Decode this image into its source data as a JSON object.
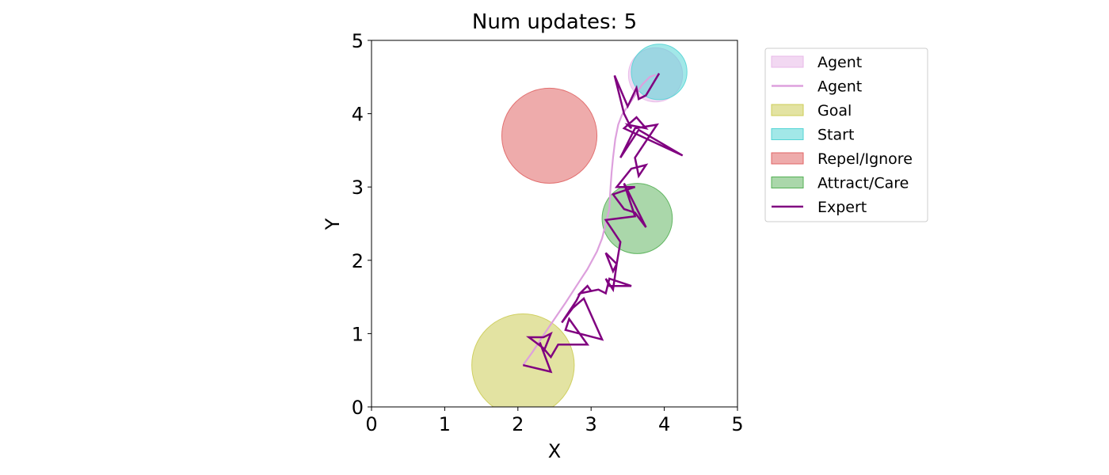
{
  "chart_data": {
    "type": "scatter",
    "title": "Num updates: 5",
    "xlabel": "X",
    "ylabel": "Y",
    "xlim": [
      0,
      5
    ],
    "ylim": [
      0,
      5
    ],
    "xticks": [
      "0",
      "1",
      "2",
      "3",
      "4",
      "5"
    ],
    "yticks": [
      "0",
      "1",
      "2",
      "3",
      "4",
      "5"
    ],
    "grid": false,
    "legend_position": "outside-right-top",
    "circles": [
      {
        "name": "Goal",
        "cx": 2.07,
        "cy": 0.57,
        "r": 0.7,
        "color": "#cccc55",
        "alpha": 0.55
      },
      {
        "name": "Repel/Ignore",
        "cx": 2.43,
        "cy": 3.7,
        "r": 0.65,
        "color": "#e06666",
        "alpha": 0.55
      },
      {
        "name": "Attract/Care",
        "cx": 3.63,
        "cy": 2.57,
        "r": 0.48,
        "color": "#55b055",
        "alpha": 0.5
      },
      {
        "name": "Agent",
        "cx": 3.88,
        "cy": 4.53,
        "r": 0.37,
        "color": "#e8b8e8",
        "alpha": 0.55
      },
      {
        "name": "Start",
        "cx": 3.93,
        "cy": 4.57,
        "r": 0.38,
        "color": "#55d5d5",
        "alpha": 0.55
      }
    ],
    "series": [
      {
        "name": "Agent",
        "color": "#dda0dd",
        "x": [
          2.07,
          2.2,
          2.35,
          2.5,
          2.65,
          2.8,
          2.95,
          3.08,
          3.15,
          3.2,
          3.25,
          3.26,
          3.27,
          3.28,
          3.3,
          3.33,
          3.37,
          3.42,
          3.5,
          3.6,
          3.7,
          3.8,
          3.88
        ],
        "y": [
          0.57,
          0.75,
          0.98,
          1.2,
          1.42,
          1.65,
          1.88,
          2.12,
          2.3,
          2.5,
          2.7,
          2.9,
          3.05,
          3.2,
          3.4,
          3.65,
          3.85,
          3.98,
          4.1,
          4.25,
          4.4,
          4.5,
          4.53
        ]
      },
      {
        "name": "Expert",
        "color": "#800080",
        "x": [
          3.93,
          3.75,
          3.65,
          3.62,
          3.5,
          3.32,
          3.45,
          3.55,
          3.5,
          3.75,
          3.62,
          3.45,
          4.25,
          3.65,
          3.4,
          3.6,
          3.9,
          3.6,
          3.65,
          3.75,
          3.55,
          3.35,
          3.6,
          3.3,
          3.45,
          3.6,
          3.75,
          3.45,
          3.6,
          3.2,
          3.4,
          3.35,
          3.3,
          3.2,
          3.35,
          3.3,
          3.2,
          3.25,
          3.55,
          3.25,
          3.2,
          3.1,
          2.85,
          2.95,
          3.0,
          2.85,
          2.8,
          2.6,
          2.75,
          2.9,
          3.15,
          2.65,
          2.7,
          2.95,
          2.55,
          2.55,
          2.45,
          2.35,
          2.15,
          2.35,
          2.45,
          2.35,
          2.3,
          2.45,
          2.07
        ],
        "y": [
          4.55,
          4.25,
          4.2,
          4.35,
          4.1,
          4.52,
          4.0,
          3.8,
          3.85,
          3.8,
          3.95,
          3.8,
          3.43,
          3.78,
          3.4,
          3.8,
          3.85,
          3.4,
          3.15,
          3.3,
          3.25,
          3.0,
          3.0,
          2.9,
          2.7,
          2.65,
          2.45,
          3.05,
          2.6,
          2.55,
          2.25,
          1.95,
          1.85,
          2.1,
          1.95,
          1.6,
          1.75,
          1.65,
          1.65,
          1.75,
          1.55,
          1.6,
          1.55,
          1.65,
          1.58,
          1.55,
          1.45,
          1.15,
          1.35,
          1.48,
          0.92,
          1.05,
          1.2,
          0.85,
          0.85,
          0.85,
          0.68,
          0.8,
          0.95,
          0.95,
          1.0,
          0.75,
          0.88,
          0.48,
          0.57
        ]
      }
    ],
    "legend": [
      {
        "label": "Agent",
        "kind": "patch",
        "color": "#e8b8e8",
        "alpha": 0.55
      },
      {
        "label": "Agent",
        "kind": "line",
        "color": "#dda0dd"
      },
      {
        "label": "Goal",
        "kind": "patch",
        "color": "#cccc55",
        "alpha": 0.55
      },
      {
        "label": "Start",
        "kind": "patch",
        "color": "#55d5d5",
        "alpha": 0.55
      },
      {
        "label": "Repel/Ignore",
        "kind": "patch",
        "color": "#e06666",
        "alpha": 0.55
      },
      {
        "label": "Attract/Care",
        "kind": "patch",
        "color": "#55b055",
        "alpha": 0.5
      },
      {
        "label": "Expert",
        "kind": "line",
        "color": "#800080"
      }
    ]
  }
}
